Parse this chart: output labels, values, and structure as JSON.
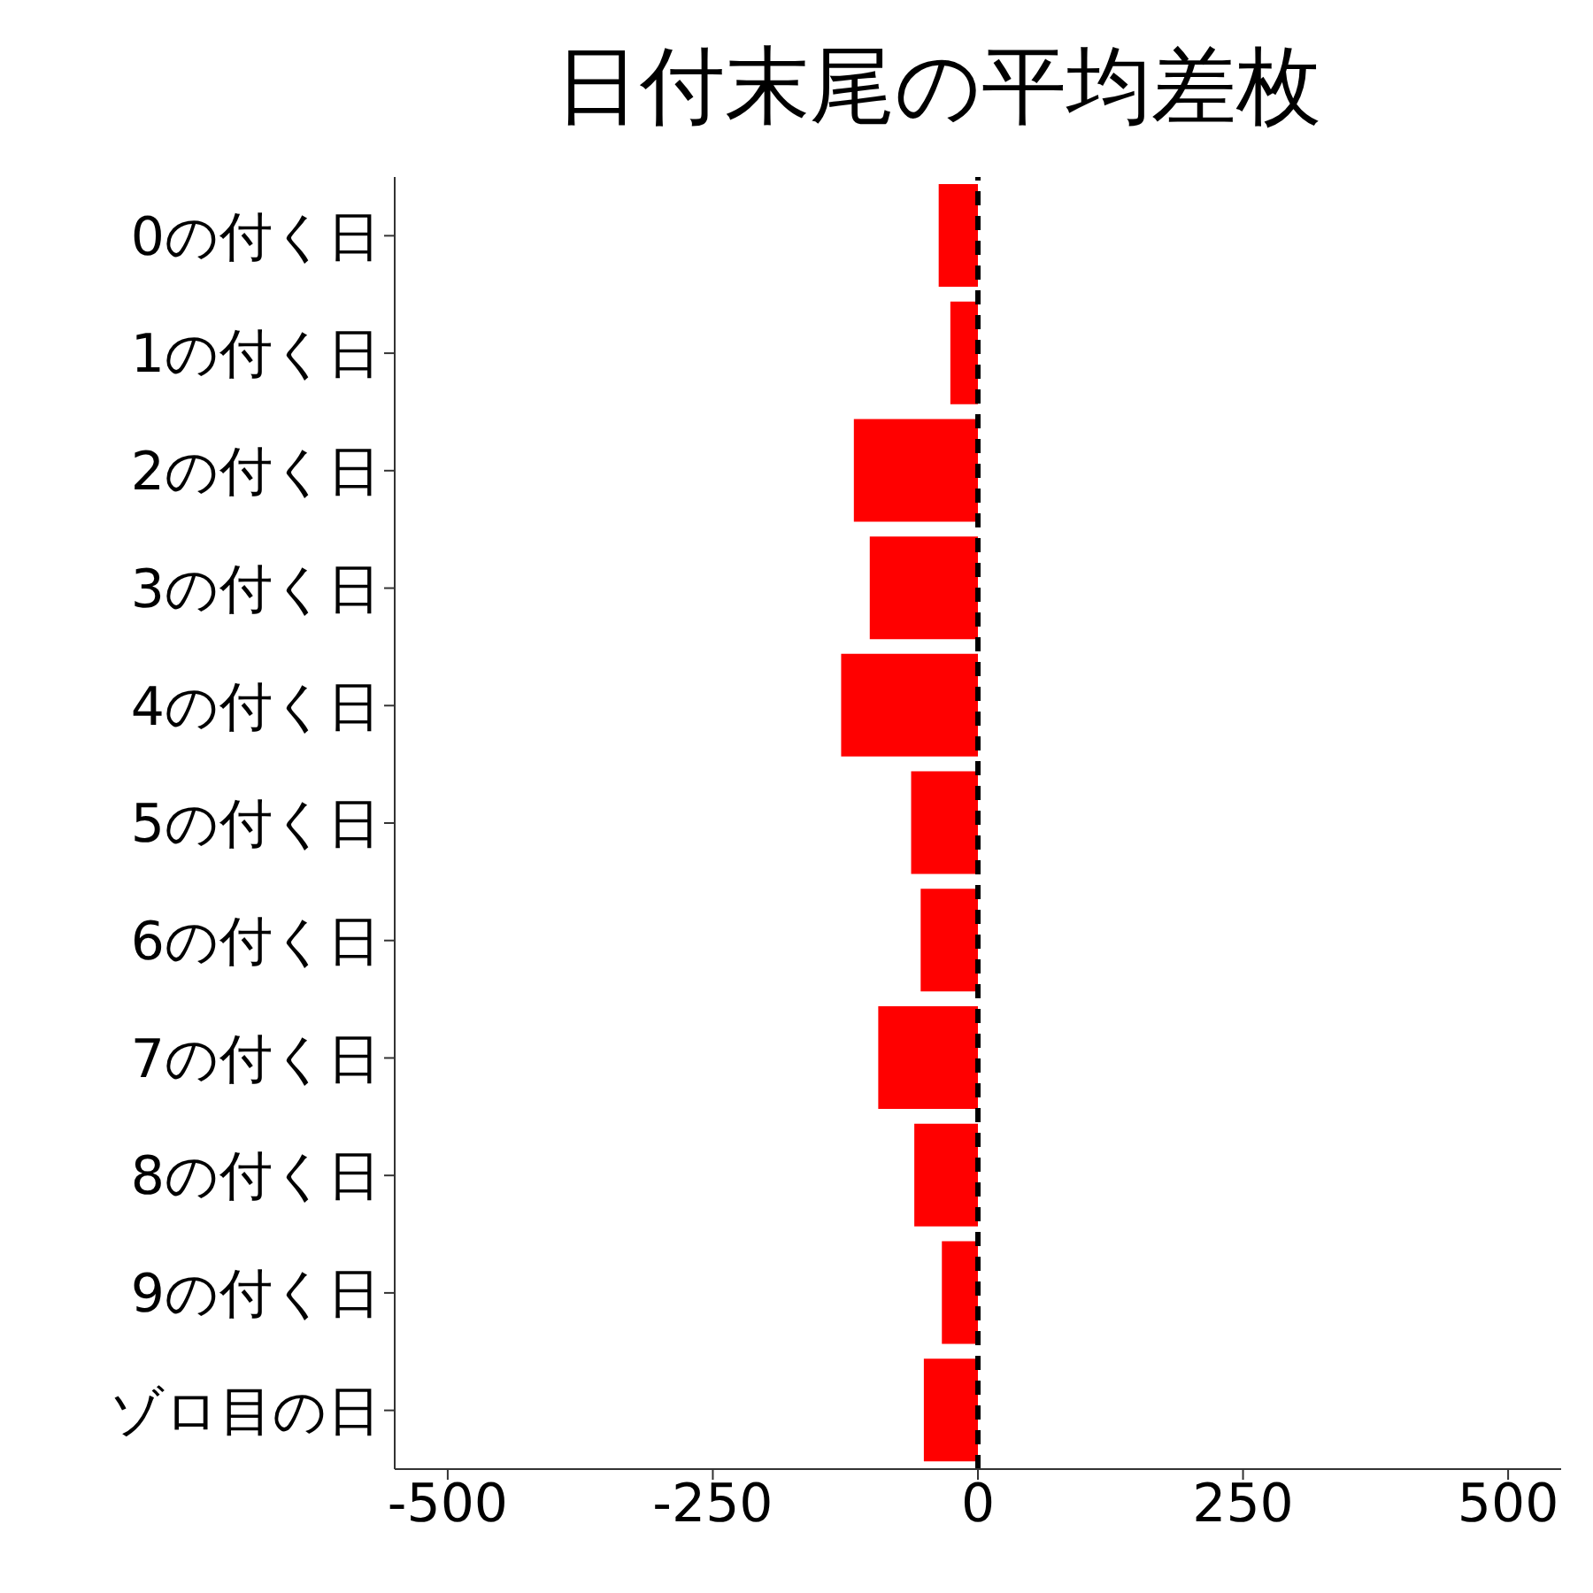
{
  "chart_data": {
    "type": "bar",
    "orientation": "horizontal",
    "title": "日付末尾の平均差枚",
    "categories": [
      "0の付く日",
      "1の付く日",
      "2の付く日",
      "3の付く日",
      "4の付く日",
      "5の付く日",
      "6の付く日",
      "7の付く日",
      "8の付く日",
      "9の付く日",
      "ゾロ目の日"
    ],
    "values": [
      -37,
      -26,
      -117,
      -102,
      -129,
      -63,
      -54,
      -94,
      -60,
      -34,
      -51
    ],
    "color": "#ff0000",
    "xlim": [
      -550,
      550
    ],
    "xticks": [
      -500,
      -250,
      0,
      250,
      500
    ],
    "ref_lines": [
      {
        "axis": "x",
        "value": 0,
        "color": "#000000",
        "line_style": "dashed"
      }
    ],
    "grid": false
  }
}
